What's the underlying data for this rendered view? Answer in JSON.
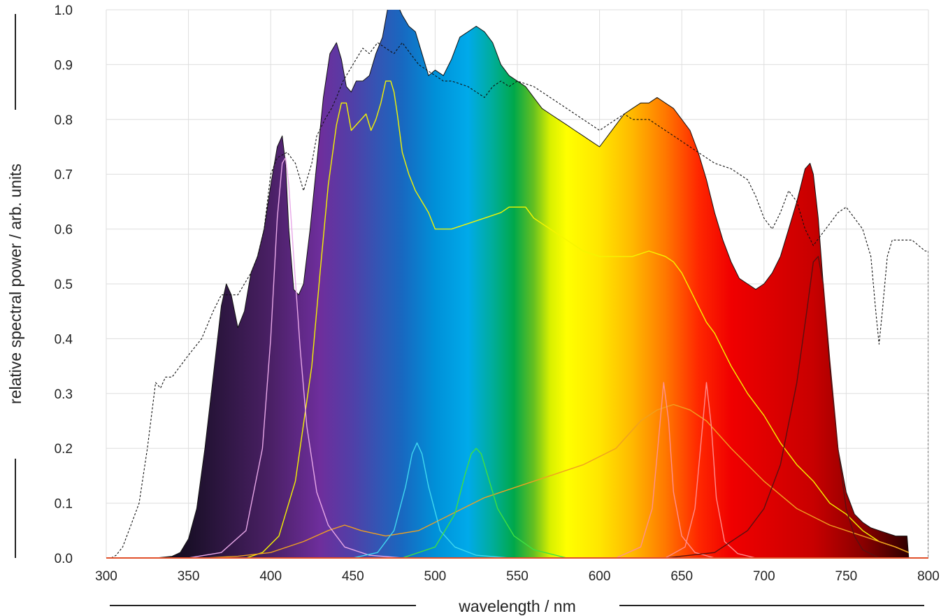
{
  "chart_data": {
    "type": "area",
    "title": "",
    "xlabel": "wavelength / nm",
    "ylabel": "relative spectral power / arb. units",
    "xlim": [
      300,
      800
    ],
    "ylim": [
      0,
      1.0
    ],
    "x_ticks": [
      "300",
      "350",
      "400",
      "450",
      "500",
      "550",
      "600",
      "650",
      "700",
      "750",
      "800"
    ],
    "y_ticks": [
      "0.0",
      "0.1",
      "0.2",
      "0.3",
      "0.4",
      "0.5",
      "0.6",
      "0.7",
      "0.8",
      "0.9",
      "1.0"
    ],
    "grid": true,
    "total_spectrum": {
      "x": [
        330,
        340,
        345,
        350,
        355,
        360,
        365,
        370,
        373,
        376,
        380,
        384,
        388,
        392,
        396,
        400,
        404,
        407,
        409,
        411,
        414,
        417,
        420,
        424,
        428,
        432,
        436,
        440,
        443,
        446,
        449,
        452,
        456,
        460,
        464,
        468,
        471,
        474,
        477,
        480,
        484,
        488,
        492,
        496,
        500,
        505,
        510,
        515,
        520,
        525,
        530,
        535,
        540,
        545,
        550,
        555,
        560,
        565,
        570,
        575,
        580,
        585,
        590,
        595,
        600,
        605,
        610,
        615,
        620,
        625,
        630,
        635,
        640,
        645,
        650,
        655,
        660,
        665,
        670,
        675,
        680,
        685,
        690,
        695,
        700,
        705,
        710,
        715,
        720,
        725,
        728,
        730,
        733,
        736,
        740,
        745,
        750,
        755,
        760,
        765,
        770,
        775,
        780,
        785,
        787,
        788
      ],
      "y": [
        0,
        0.003,
        0.01,
        0.035,
        0.09,
        0.2,
        0.33,
        0.46,
        0.5,
        0.48,
        0.42,
        0.45,
        0.52,
        0.55,
        0.6,
        0.68,
        0.75,
        0.77,
        0.72,
        0.6,
        0.49,
        0.48,
        0.5,
        0.6,
        0.72,
        0.84,
        0.92,
        0.94,
        0.91,
        0.86,
        0.85,
        0.87,
        0.87,
        0.88,
        0.92,
        0.95,
        1.0,
        1.03,
        1.01,
        0.99,
        0.97,
        0.96,
        0.92,
        0.88,
        0.89,
        0.88,
        0.91,
        0.95,
        0.96,
        0.97,
        0.96,
        0.94,
        0.9,
        0.88,
        0.87,
        0.86,
        0.84,
        0.82,
        0.81,
        0.8,
        0.79,
        0.78,
        0.77,
        0.76,
        0.75,
        0.77,
        0.79,
        0.81,
        0.82,
        0.83,
        0.83,
        0.84,
        0.83,
        0.82,
        0.8,
        0.78,
        0.74,
        0.69,
        0.63,
        0.58,
        0.54,
        0.51,
        0.5,
        0.49,
        0.5,
        0.52,
        0.55,
        0.6,
        0.65,
        0.71,
        0.72,
        0.7,
        0.62,
        0.5,
        0.35,
        0.2,
        0.12,
        0.08,
        0.065,
        0.055,
        0.05,
        0.045,
        0.04,
        0.04,
        0.04,
        0
      ]
    },
    "series": [
      {
        "color": "#f5f500",
        "x": [
          385,
          395,
          405,
          415,
          425,
          430,
          435,
          440,
          443,
          446,
          449,
          452,
          455,
          458,
          461,
          464,
          467,
          470,
          473,
          475,
          477,
          480,
          484,
          488,
          492,
          496,
          500,
          510,
          520,
          530,
          540,
          545,
          550,
          555,
          560,
          565,
          570,
          580,
          590,
          600,
          610,
          620,
          630,
          640,
          645,
          650,
          655,
          660,
          665,
          670,
          680,
          690,
          700,
          710,
          720,
          730,
          740,
          750,
          760,
          770,
          780,
          788
        ],
        "y": [
          0,
          0.01,
          0.04,
          0.14,
          0.35,
          0.52,
          0.68,
          0.79,
          0.83,
          0.83,
          0.78,
          0.79,
          0.8,
          0.81,
          0.78,
          0.8,
          0.83,
          0.87,
          0.87,
          0.85,
          0.81,
          0.74,
          0.7,
          0.67,
          0.65,
          0.63,
          0.6,
          0.6,
          0.61,
          0.62,
          0.63,
          0.64,
          0.64,
          0.64,
          0.62,
          0.61,
          0.6,
          0.58,
          0.56,
          0.55,
          0.55,
          0.55,
          0.56,
          0.55,
          0.54,
          0.52,
          0.49,
          0.46,
          0.43,
          0.41,
          0.35,
          0.3,
          0.26,
          0.21,
          0.17,
          0.14,
          0.1,
          0.08,
          0.05,
          0.03,
          0.02,
          0.01
        ]
      },
      {
        "color": "#f0a020",
        "x": [
          360,
          380,
          400,
          420,
          435,
          445,
          455,
          470,
          490,
          510,
          530,
          550,
          570,
          590,
          610,
          625,
          635,
          645,
          655,
          665,
          680,
          700,
          720,
          740,
          760,
          780,
          788
        ],
        "y": [
          0,
          0.003,
          0.01,
          0.03,
          0.05,
          0.06,
          0.05,
          0.04,
          0.05,
          0.08,
          0.11,
          0.13,
          0.15,
          0.17,
          0.2,
          0.25,
          0.27,
          0.28,
          0.27,
          0.25,
          0.2,
          0.14,
          0.09,
          0.06,
          0.04,
          0.02,
          0.01
        ]
      },
      {
        "color": "#e8a8e8",
        "x": [
          350,
          370,
          385,
          395,
          400,
          404,
          407,
          409,
          411,
          414,
          418,
          422,
          428,
          435,
          445,
          460,
          480
        ],
        "y": [
          0,
          0.01,
          0.05,
          0.2,
          0.4,
          0.62,
          0.72,
          0.73,
          0.68,
          0.55,
          0.38,
          0.24,
          0.12,
          0.06,
          0.02,
          0.005,
          0
        ]
      },
      {
        "color": "#40d8f0",
        "x": [
          450,
          465,
          475,
          482,
          486,
          489,
          492,
          496,
          503,
          512,
          525,
          545
        ],
        "y": [
          0,
          0.01,
          0.05,
          0.13,
          0.19,
          0.21,
          0.19,
          0.13,
          0.05,
          0.02,
          0.005,
          0
        ]
      },
      {
        "color": "#40e040",
        "x": [
          480,
          500,
          512,
          518,
          522,
          525,
          528,
          532,
          538,
          548,
          560,
          580
        ],
        "y": [
          0,
          0.02,
          0.08,
          0.15,
          0.19,
          0.2,
          0.19,
          0.15,
          0.09,
          0.04,
          0.015,
          0
        ]
      },
      {
        "color": "#ff9090",
        "x": [
          610,
          625,
          632,
          636,
          639,
          642,
          645,
          650,
          658,
          670
        ],
        "y": [
          0,
          0.02,
          0.09,
          0.22,
          0.32,
          0.25,
          0.12,
          0.04,
          0.01,
          0
        ]
      },
      {
        "color": "#ff8c8c",
        "x": [
          640,
          652,
          658,
          662,
          665,
          668,
          671,
          676,
          684,
          695
        ],
        "y": [
          0,
          0.02,
          0.09,
          0.22,
          0.32,
          0.24,
          0.11,
          0.03,
          0.008,
          0
        ]
      },
      {
        "color": "#5a1010",
        "x": [
          640,
          670,
          690,
          700,
          710,
          720,
          726,
          730,
          733,
          736,
          740,
          745,
          750,
          755,
          760,
          770
        ],
        "y": [
          0,
          0.01,
          0.05,
          0.09,
          0.17,
          0.32,
          0.45,
          0.54,
          0.55,
          0.5,
          0.36,
          0.2,
          0.09,
          0.04,
          0.015,
          0
        ]
      },
      {
        "color": "#111111",
        "dashed": true,
        "x": [
          303,
          306,
          310,
          315,
          320,
          325,
          330,
          333,
          336,
          340,
          345,
          350,
          358,
          365,
          370,
          375,
          380,
          384,
          388,
          392,
          396,
          400,
          404,
          410,
          415,
          420,
          425,
          428,
          433,
          437,
          440,
          444,
          448,
          452,
          456,
          460,
          465,
          470,
          475,
          480,
          485,
          490,
          495,
          500,
          505,
          510,
          520,
          530,
          535,
          540,
          545,
          550,
          560,
          570,
          580,
          590,
          600,
          605,
          610,
          615,
          620,
          630,
          640,
          650,
          660,
          670,
          680,
          690,
          695,
          700,
          705,
          710,
          715,
          720,
          725,
          730,
          735,
          740,
          745,
          750,
          755,
          760,
          765,
          768,
          770,
          772,
          775,
          778,
          790,
          798,
          800,
          800
        ],
        "y": [
          0,
          0.005,
          0.02,
          0.06,
          0.1,
          0.2,
          0.32,
          0.31,
          0.33,
          0.33,
          0.35,
          0.37,
          0.4,
          0.45,
          0.48,
          0.48,
          0.48,
          0.5,
          0.52,
          0.55,
          0.6,
          0.7,
          0.73,
          0.74,
          0.72,
          0.67,
          0.72,
          0.77,
          0.8,
          0.82,
          0.84,
          0.87,
          0.89,
          0.91,
          0.93,
          0.92,
          0.94,
          0.93,
          0.92,
          0.94,
          0.92,
          0.9,
          0.89,
          0.88,
          0.87,
          0.87,
          0.86,
          0.84,
          0.86,
          0.87,
          0.86,
          0.87,
          0.86,
          0.84,
          0.82,
          0.8,
          0.78,
          0.79,
          0.8,
          0.81,
          0.8,
          0.8,
          0.78,
          0.76,
          0.74,
          0.72,
          0.71,
          0.69,
          0.66,
          0.62,
          0.6,
          0.63,
          0.67,
          0.65,
          0.6,
          0.57,
          0.59,
          0.61,
          0.63,
          0.64,
          0.62,
          0.6,
          0.55,
          0.45,
          0.39,
          0.45,
          0.55,
          0.58,
          0.58,
          0.56,
          0.56,
          0
        ]
      }
    ]
  }
}
